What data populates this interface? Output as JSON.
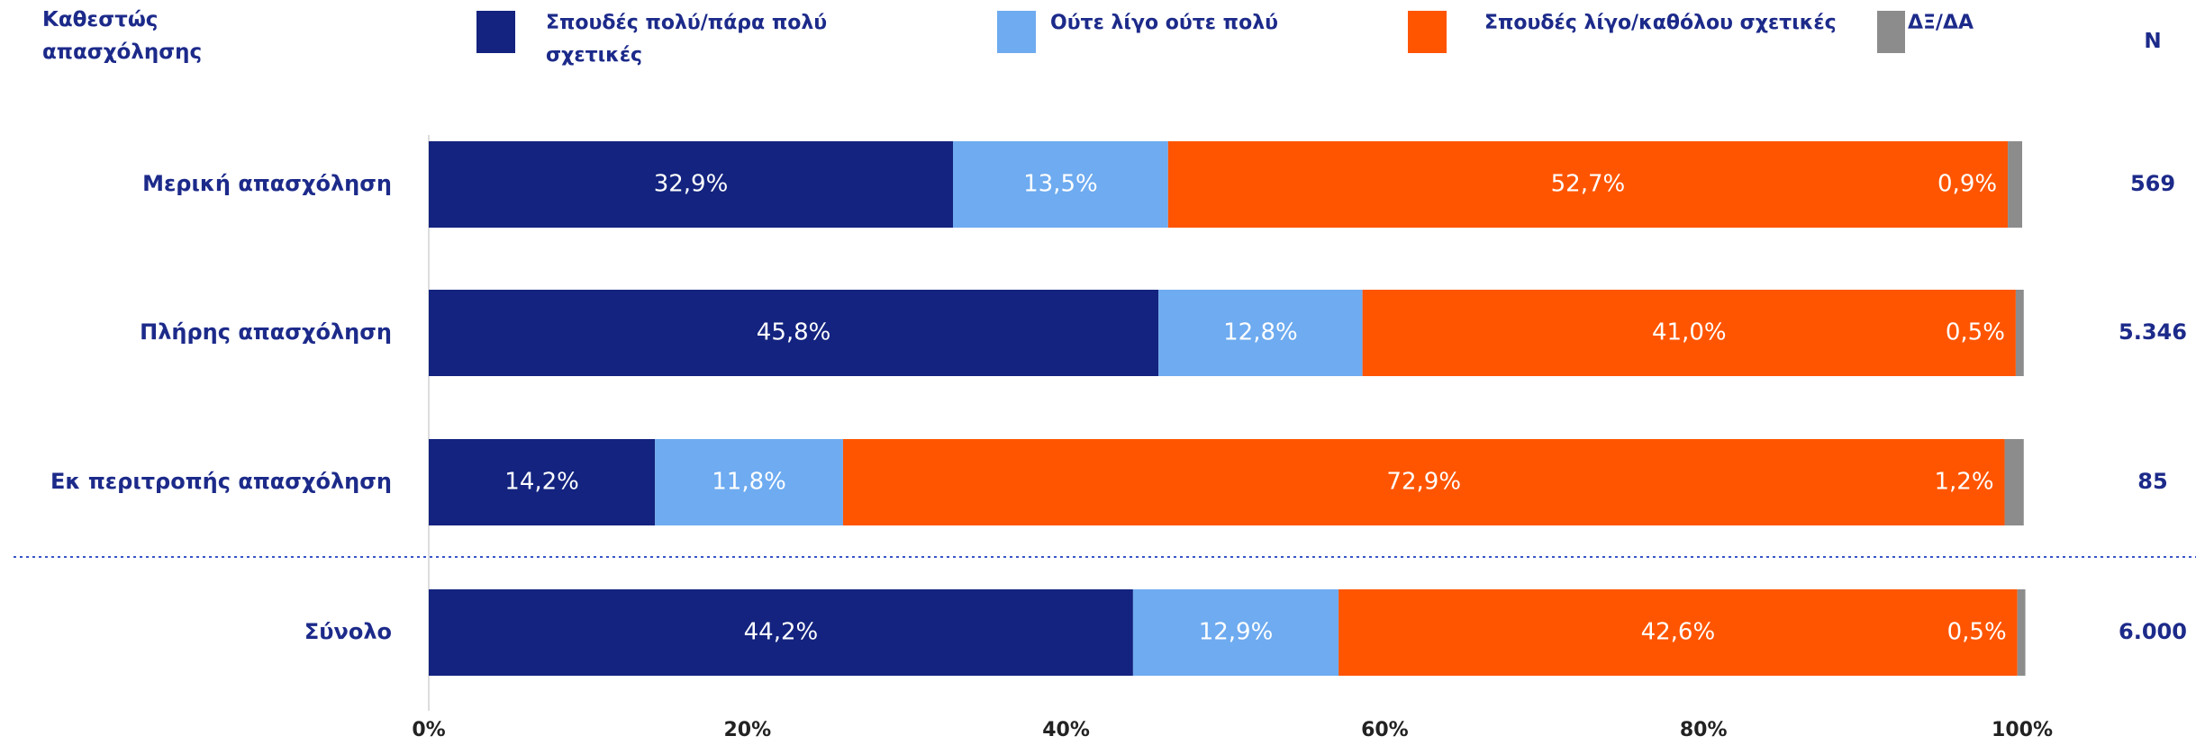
{
  "chart_data": {
    "type": "stacked_bar_horizontal",
    "y_label": "Καθεστώς απασχόλησης",
    "categories": [
      "Μερική απασχόληση",
      "Πλήρης απασχόληση",
      "Εκ περιτροπής απασχόληση",
      "Σύνολο"
    ],
    "series": [
      {
        "name": "Σπουδές πολύ/πάρα πολύ σχετικές",
        "color": "#13237f",
        "values": [
          32.9,
          45.8,
          14.2,
          44.2
        ],
        "value_labels": [
          "32,9%",
          "45,8%",
          "14,2%",
          "44,2%"
        ]
      },
      {
        "name": "Ούτε λίγο ούτε πολύ",
        "color": "#6eabf0",
        "values": [
          13.5,
          12.8,
          11.8,
          12.9
        ],
        "value_labels": [
          "13,5%",
          "12,8%",
          "11,8%",
          "12,9%"
        ]
      },
      {
        "name": "Σπουδές λίγο/καθόλου σχετικές",
        "color": "#ff5500",
        "values": [
          52.7,
          41.0,
          72.9,
          42.6
        ],
        "value_labels": [
          "52,7%",
          "41,0%",
          "72,9%",
          "42,6%"
        ]
      },
      {
        "name": "ΔΞ/ΔΑ",
        "color": "#8c8c8c",
        "values": [
          0.9,
          0.5,
          1.2,
          0.5
        ],
        "value_labels": [
          "0,9%",
          "0,5%",
          "1,2%",
          "0,5%"
        ]
      }
    ],
    "n_column": {
      "label": "N",
      "values": [
        569,
        5346,
        85,
        6000
      ],
      "value_labels": [
        "569",
        "5.346",
        "85",
        "6.000"
      ]
    },
    "xlim": [
      0,
      100
    ],
    "xticks": [
      {
        "value": 0,
        "label": "0%"
      },
      {
        "value": 20,
        "label": "20%"
      },
      {
        "value": 40,
        "label": "40%"
      },
      {
        "value": 60,
        "label": "60%"
      },
      {
        "value": 80,
        "label": "80%"
      },
      {
        "value": 100,
        "label": "100%"
      }
    ]
  }
}
